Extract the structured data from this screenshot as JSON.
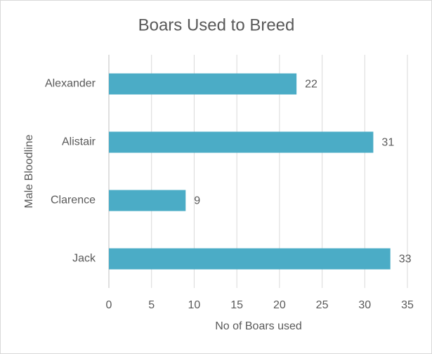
{
  "chart_data": {
    "type": "bar",
    "orientation": "horizontal",
    "title": "Boars Used to Breed",
    "x_label": "No of Boars used",
    "y_label": "Male Bloodline",
    "categories": [
      "Alexander",
      "Alistair",
      "Clarence",
      "Jack"
    ],
    "values": [
      22,
      31,
      9,
      33
    ],
    "color": "#4bacc6",
    "xlim": [
      0,
      35
    ],
    "xticks": [
      0,
      5,
      10,
      15,
      20,
      25,
      30,
      35
    ],
    "grid": true,
    "data_labels": true
  }
}
